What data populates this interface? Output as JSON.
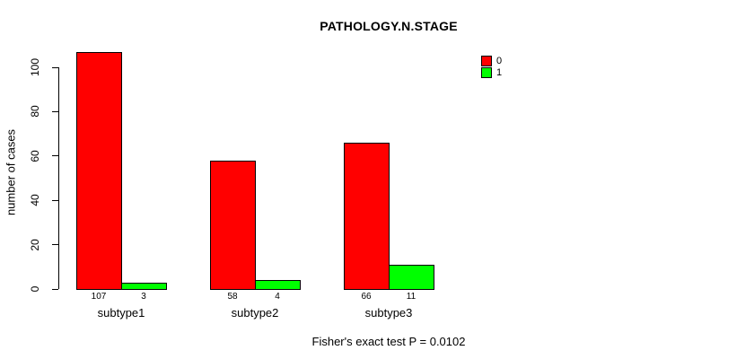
{
  "chart_data": {
    "type": "bar",
    "title": "PATHOLOGY.N.STAGE",
    "ylabel": "number of cases",
    "xlabel": "",
    "categories": [
      "subtype1",
      "subtype2",
      "subtype3"
    ],
    "series": [
      {
        "name": "0",
        "color": "#ff0000",
        "values": [
          107,
          58,
          66
        ]
      },
      {
        "name": "1",
        "color": "#00ff00",
        "values": [
          3,
          4,
          11
        ]
      }
    ],
    "ylim": [
      0,
      100
    ],
    "yticks": [
      0,
      20,
      40,
      60,
      80,
      100
    ],
    "grid": false,
    "legend_position": "top-right",
    "values_shown_below_bars": true,
    "annotation": "Fisher's exact test P = 0.0102"
  }
}
